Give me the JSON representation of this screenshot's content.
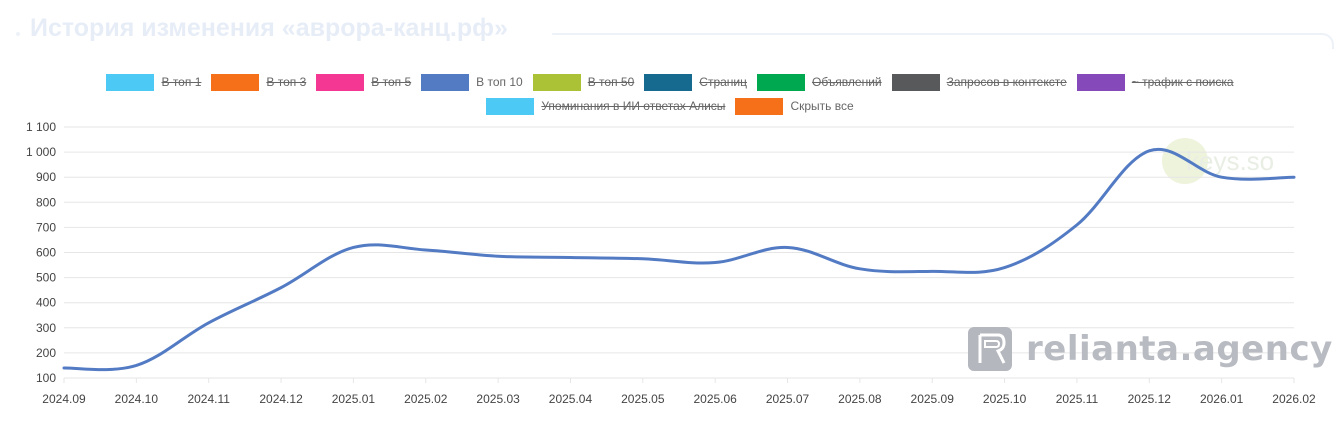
{
  "page": {
    "title": "История изменения «аврора-канц.рф»"
  },
  "legend": {
    "items": [
      {
        "label": "В топ 1",
        "color": "#4dc9f6",
        "hidden": true
      },
      {
        "label": "В топ 3",
        "color": "#f67019",
        "hidden": true
      },
      {
        "label": "В топ 5",
        "color": "#f53794",
        "hidden": true
      },
      {
        "label": "В топ 10",
        "color": "#537bc4",
        "hidden": false
      },
      {
        "label": "В топ 50",
        "color": "#acc236",
        "hidden": true
      },
      {
        "label": "Страниц",
        "color": "#166a8f",
        "hidden": true
      },
      {
        "label": "Объявлений",
        "color": "#00a950",
        "hidden": true
      },
      {
        "label": "Запросов в контексте",
        "color": "#58595b",
        "hidden": true
      },
      {
        "label": "~ трафик с поиска",
        "color": "#8549ba",
        "hidden": true
      },
      {
        "label": "Упоминания в ИИ ответах Алисы",
        "color": "#4dc9f6",
        "hidden": true
      },
      {
        "label": "Скрыть все",
        "color": "#f67019",
        "hidden": false
      }
    ]
  },
  "watermarks": {
    "agency": "relianta.agency",
    "keys": "keys.so"
  },
  "chart_data": {
    "type": "line",
    "categories": [
      "2024.09",
      "2024.10",
      "2024.11",
      "2024.12",
      "2025.01",
      "2025.02",
      "2025.03",
      "2025.04",
      "2025.05",
      "2025.06",
      "2025.07",
      "2025.08",
      "2025.09",
      "2025.10",
      "2025.11",
      "2025.12",
      "2026.01",
      "2026.02"
    ],
    "series": [
      {
        "name": "В топ 10",
        "color": "#537bc4",
        "values": [
          140,
          150,
          320,
          460,
          620,
          610,
          585,
          580,
          575,
          560,
          620,
          535,
          525,
          540,
          710,
          1005,
          900,
          900
        ]
      }
    ],
    "ylim": [
      100,
      1100
    ],
    "yticks": [
      100,
      200,
      300,
      400,
      500,
      600,
      700,
      800,
      900,
      1000,
      1100
    ],
    "ytick_labels": [
      "100",
      "200",
      "300",
      "400",
      "500",
      "600",
      "700",
      "800",
      "900",
      "1 000",
      "1 100"
    ],
    "grid": true
  }
}
